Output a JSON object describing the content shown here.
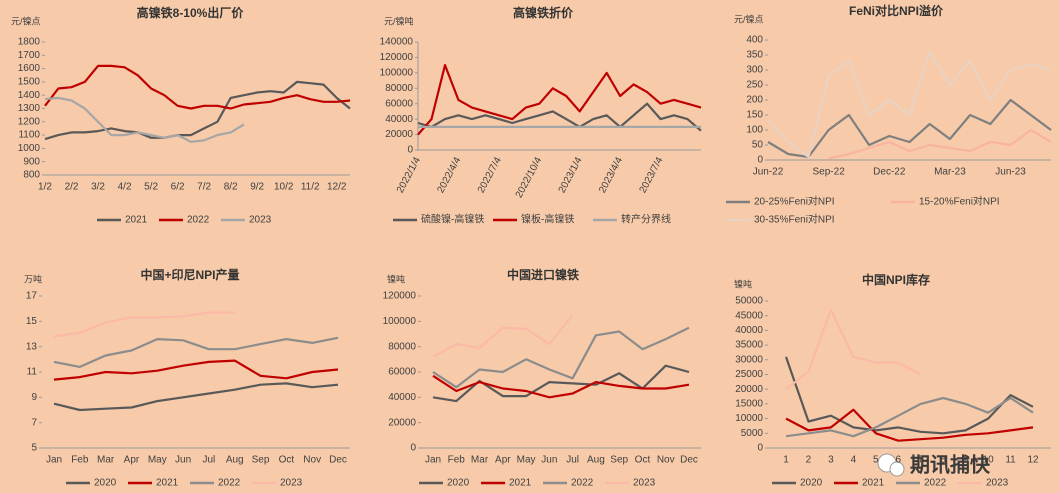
{
  "chart_data": [
    {
      "type": "line",
      "title": "高镍铁8-10%出厂价",
      "y_label": "元/镍点",
      "categories": [
        "1/2",
        null,
        "2/2",
        null,
        "3/2",
        null,
        "4/2",
        null,
        "5/2",
        null,
        "6/2",
        null,
        "7/2",
        null,
        "8/2",
        null,
        "9/2",
        null,
        "10/2",
        null,
        "11/2",
        null,
        "12/2",
        null
      ],
      "series": [
        {
          "name": "2021",
          "color": "#595959",
          "values": [
            1070,
            1100,
            1120,
            1120,
            1130,
            1150,
            1130,
            1120,
            1080,
            1080,
            1100,
            1100,
            1150,
            1200,
            1380,
            1400,
            1420,
            1430,
            1420,
            1500,
            1490,
            1480,
            1380,
            1300
          ]
        },
        {
          "name": "2022",
          "color": "#c00000",
          "values": [
            1320,
            1450,
            1460,
            1500,
            1620,
            1620,
            1610,
            1550,
            1450,
            1400,
            1320,
            1300,
            1320,
            1320,
            1300,
            1330,
            1340,
            1350,
            1380,
            1400,
            1370,
            1350,
            1350,
            1360
          ]
        },
        {
          "name": "2023",
          "color": "#a6a6a6",
          "values": [
            1370,
            1380,
            1360,
            1300,
            1200,
            1100,
            1100,
            1120,
            1100,
            1080,
            1100,
            1050,
            1060,
            1100,
            1120,
            1180,
            null,
            null,
            null,
            null,
            null,
            null,
            null,
            null
          ]
        }
      ],
      "ylim": [
        800,
        1800
      ],
      "yticks": [
        800,
        900,
        1000,
        1100,
        1200,
        1300,
        1400,
        1500,
        1600,
        1700,
        1800
      ]
    },
    {
      "type": "line",
      "title": "高镍铁折价",
      "y_label": "元/镍吨",
      "categories": [
        "2022/1/4",
        null,
        null,
        "2022/4/4",
        null,
        null,
        "2022/7/4",
        null,
        null,
        "2022/10/4",
        null,
        null,
        "2023/1/4",
        null,
        null,
        "2023/4/4",
        null,
        null,
        "2023/7/4",
        null,
        null,
        null
      ],
      "series": [
        {
          "name": "硫酸镍-高镍铁",
          "color": "#595959",
          "values": [
            35000,
            30000,
            40000,
            45000,
            40000,
            45000,
            40000,
            35000,
            40000,
            45000,
            50000,
            40000,
            30000,
            40000,
            45000,
            30000,
            45000,
            60000,
            40000,
            45000,
            40000,
            25000
          ]
        },
        {
          "name": "镍板-高镍铁",
          "color": "#c00000",
          "values": [
            20000,
            40000,
            110000,
            65000,
            55000,
            50000,
            45000,
            40000,
            55000,
            60000,
            80000,
            70000,
            50000,
            75000,
            100000,
            70000,
            85000,
            75000,
            60000,
            65000,
            60000,
            55000
          ]
        },
        {
          "name": "转产分界线",
          "color": "#a6a6a6",
          "values": [
            30000,
            30000,
            30000,
            30000,
            30000,
            30000,
            30000,
            30000,
            30000,
            30000,
            30000,
            30000,
            30000,
            30000,
            30000,
            30000,
            30000,
            30000,
            30000,
            30000,
            30000,
            30000
          ]
        }
      ],
      "ylim": [
        0,
        140000
      ],
      "yticks": [
        0,
        20000,
        40000,
        60000,
        80000,
        100000,
        120000,
        140000
      ]
    },
    {
      "type": "line",
      "title": "FeNi对比NPI溢价",
      "y_label": "元/镍点",
      "categories": [
        "Jun-22",
        null,
        null,
        "Sep-22",
        null,
        null,
        "Dec-22",
        null,
        null,
        "Mar-23",
        null,
        null,
        "Jun-23",
        null,
        null
      ],
      "series": [
        {
          "name": "20-25%Feni对NPI",
          "color": "#7f7f7f",
          "values": [
            60,
            20,
            10,
            100,
            150,
            50,
            80,
            60,
            120,
            70,
            150,
            120,
            200,
            150,
            100
          ]
        },
        {
          "name": "15-20%Feni对NPI",
          "color": "#f8b4a0",
          "values": [
            null,
            null,
            null,
            5,
            20,
            40,
            60,
            30,
            50,
            40,
            30,
            60,
            50,
            100,
            60
          ]
        },
        {
          "name": "30-35%Feni对NPI",
          "color": "#e8d2c4",
          "values": [
            130,
            60,
            10,
            280,
            330,
            150,
            200,
            150,
            360,
            250,
            330,
            200,
            300,
            320,
            300
          ]
        }
      ],
      "ylim": [
        0,
        400
      ],
      "yticks": [
        0,
        50,
        100,
        150,
        200,
        250,
        300,
        350,
        400
      ]
    },
    {
      "type": "line",
      "title": "中国+印尼NPI产量",
      "y_label": "万吨",
      "categories": [
        "Jan",
        "Feb",
        "Mar",
        "Apr",
        "May",
        "Jun",
        "Jul",
        "Aug",
        "Sep",
        "Oct",
        "Nov",
        "Dec"
      ],
      "series": [
        {
          "name": "2020",
          "color": "#595959",
          "values": [
            8.5,
            8.0,
            8.1,
            8.2,
            8.7,
            9.0,
            9.3,
            9.6,
            10.0,
            10.1,
            9.8,
            10.0
          ]
        },
        {
          "name": "2021",
          "color": "#c00000",
          "values": [
            10.4,
            10.6,
            11.0,
            10.9,
            11.1,
            11.5,
            11.8,
            11.9,
            10.7,
            10.5,
            11.0,
            11.2
          ]
        },
        {
          "name": "2022",
          "color": "#8c8c8c",
          "values": [
            11.8,
            11.4,
            12.3,
            12.7,
            13.6,
            13.5,
            12.8,
            12.8,
            13.2,
            13.6,
            13.3,
            13.7
          ]
        },
        {
          "name": "2023",
          "color": "#fbb9a8",
          "values": [
            13.8,
            14.1,
            14.9,
            15.3,
            15.3,
            15.4,
            15.7,
            15.7,
            null,
            null,
            null,
            null
          ]
        }
      ],
      "ylim": [
        5,
        17
      ],
      "yticks": [
        5,
        7,
        9,
        11,
        13,
        15,
        17
      ]
    },
    {
      "type": "line",
      "title": "中国进口镍铁",
      "y_label": "镍吨",
      "categories": [
        "Jan",
        "Feb",
        "Mar",
        "Apr",
        "May",
        "Jun",
        "Jul",
        "Aug",
        "Sep",
        "Oct",
        "Nov",
        "Dec"
      ],
      "series": [
        {
          "name": "2020",
          "color": "#595959",
          "values": [
            40000,
            37000,
            53000,
            41000,
            41000,
            52000,
            51000,
            50000,
            59000,
            47000,
            65000,
            60000
          ]
        },
        {
          "name": "2021",
          "color": "#c00000",
          "values": [
            57000,
            45000,
            52000,
            47000,
            45000,
            40000,
            43000,
            52000,
            49000,
            47000,
            47000,
            50000
          ]
        },
        {
          "name": "2022",
          "color": "#8c8c8c",
          "values": [
            60000,
            48000,
            62000,
            60000,
            70000,
            62000,
            55000,
            89000,
            92000,
            78000,
            86000,
            95000
          ]
        },
        {
          "name": "2023",
          "color": "#fbb9a8",
          "values": [
            72000,
            82000,
            79000,
            95000,
            94000,
            82000,
            105000,
            null,
            null,
            null,
            null,
            null
          ]
        }
      ],
      "ylim": [
        0,
        120000
      ],
      "yticks": [
        0,
        20000,
        40000,
        60000,
        80000,
        100000,
        120000
      ]
    },
    {
      "type": "line",
      "title": "中国NPI库存",
      "y_label": "镍吨",
      "categories": [
        1,
        2,
        3,
        4,
        5,
        6,
        7,
        8,
        9,
        10,
        11,
        12
      ],
      "series": [
        {
          "name": "2020",
          "color": "#595959",
          "values": [
            31000,
            9000,
            11000,
            7000,
            6000,
            7000,
            5500,
            5000,
            6000,
            10000,
            18000,
            14000
          ]
        },
        {
          "name": "2021",
          "color": "#c00000",
          "values": [
            10000,
            6000,
            7000,
            13000,
            5000,
            2500,
            3000,
            3500,
            4500,
            5000,
            6000,
            7000
          ]
        },
        {
          "name": "2022",
          "color": "#8c8c8c",
          "values": [
            4000,
            5000,
            6000,
            4000,
            7000,
            11000,
            15000,
            17000,
            15000,
            12000,
            17000,
            12000
          ]
        },
        {
          "name": "2023",
          "color": "#fbb9a8",
          "values": [
            20000,
            26000,
            47000,
            31000,
            29000,
            29000,
            25000,
            null,
            null,
            null,
            null,
            null
          ]
        }
      ],
      "ylim": [
        0,
        50000
      ],
      "yticks": [
        0,
        5000,
        10000,
        15000,
        20000,
        25000,
        30000,
        35000,
        40000,
        45000,
        50000
      ]
    }
  ],
  "watermark": "期讯捕快"
}
